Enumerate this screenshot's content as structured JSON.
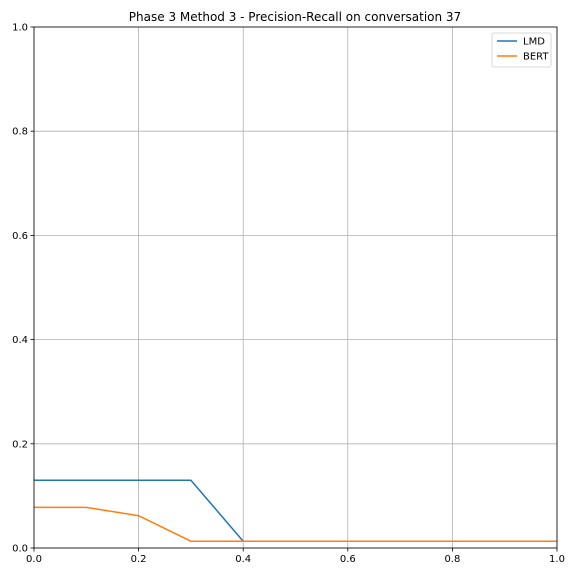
{
  "chart_data": {
    "type": "line",
    "title": "Phase 3 Method 3 - Precision-Recall on conversation 37",
    "xlabel": "",
    "ylabel": "",
    "xlim": [
      0,
      1
    ],
    "ylim": [
      0,
      1
    ],
    "xticks": [
      0.0,
      0.2,
      0.4,
      0.6,
      0.8,
      1.0
    ],
    "yticks": [
      0.0,
      0.2,
      0.4,
      0.6,
      0.8,
      1.0
    ],
    "xtick_labels": [
      "0.0",
      "0.2",
      "0.4",
      "0.6",
      "0.8",
      "1.0"
    ],
    "ytick_labels": [
      "0.0",
      "0.2",
      "0.4",
      "0.6",
      "0.8",
      "1.0"
    ],
    "grid": true,
    "legend_position": "top-right",
    "series": [
      {
        "name": "LMD",
        "color": "#1f77b4",
        "x": [
          0.0,
          0.1,
          0.2,
          0.3,
          0.4,
          0.5,
          0.6,
          0.7,
          0.8,
          0.9,
          1.0
        ],
        "y": [
          0.13,
          0.13,
          0.13,
          0.13,
          0.013,
          0.013,
          0.013,
          0.013,
          0.013,
          0.013,
          0.013
        ]
      },
      {
        "name": "BERT",
        "color": "#ff7f0e",
        "x": [
          0.0,
          0.1,
          0.2,
          0.3,
          0.4,
          0.5,
          0.6,
          0.7,
          0.8,
          0.9,
          1.0
        ],
        "y": [
          0.078,
          0.078,
          0.062,
          0.013,
          0.013,
          0.013,
          0.013,
          0.013,
          0.013,
          0.013,
          0.013
        ]
      }
    ]
  }
}
